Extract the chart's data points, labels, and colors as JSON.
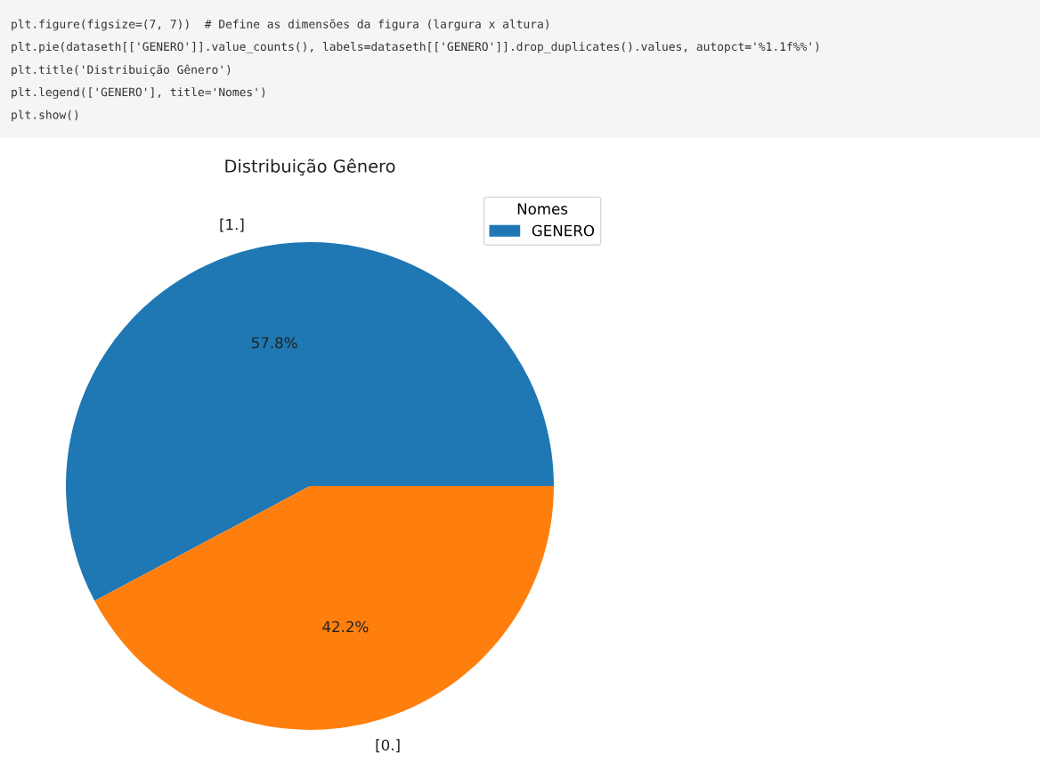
{
  "chart_data": {
    "type": "pie",
    "title": "Distribuição Gênero",
    "categories": [
      "[1.]",
      "[0.]"
    ],
    "series": [
      {
        "name": "GENERO",
        "values": [
          57.8,
          42.2
        ]
      }
    ],
    "colors": [
      "#1f77b4",
      "#ff7f0e"
    ],
    "value_labels": [
      "57.8%",
      "42.2%"
    ],
    "legend": "top right",
    "legend_title": "Nomes",
    "annotations": [
      "plt.figure(figsize=(7, 7))  # Define as dimensões da figura (largura x altura)",
      "plt.pie(dataseth[['GENERO']].value_counts(), labels=dataseth[['GENERO']].drop_duplicates().values, autopct='%1.1f%%')",
      "plt.title('Distribuição Gênero')",
      "plt.legend(['GENERO'], title='Nomes')",
      "plt.show()"
    ]
  }
}
